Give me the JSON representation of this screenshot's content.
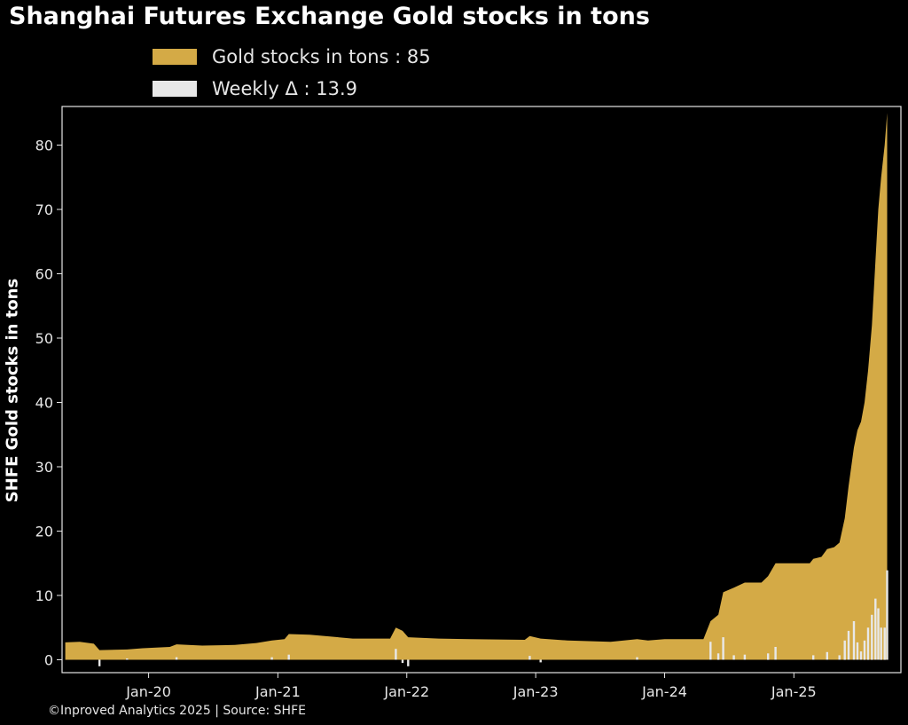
{
  "chart_data": {
    "type": "area",
    "title": "Shanghai Futures Exchange Gold stocks in tons",
    "ylabel": "SHFE Gold stocks in tons",
    "xlabel": "",
    "ylim": [
      -2,
      86
    ],
    "xlim": [
      "2019-05-01",
      "2025-10-31"
    ],
    "yticks": [
      "0",
      "10",
      "20",
      "30",
      "40",
      "50",
      "60",
      "70",
      "80"
    ],
    "xticks": [
      {
        "date": "2020-01-01",
        "label": "Jan-20"
      },
      {
        "date": "2021-01-01",
        "label": "Jan-21"
      },
      {
        "date": "2022-01-01",
        "label": "Jan-22"
      },
      {
        "date": "2023-01-01",
        "label": "Jan-23"
      },
      {
        "date": "2024-01-01",
        "label": "Jan-24"
      },
      {
        "date": "2025-01-01",
        "label": "Jan-25"
      }
    ],
    "legend_position": "top-left",
    "series": [
      {
        "name": "Gold stocks in tons",
        "legend_value": "85",
        "color": "#d4aa46",
        "kind": "area",
        "points": [
          [
            "2019-05-10",
            2.7
          ],
          [
            "2019-06-20",
            2.8
          ],
          [
            "2019-07-30",
            2.5
          ],
          [
            "2019-08-15",
            1.5
          ],
          [
            "2019-11-01",
            1.6
          ],
          [
            "2019-12-15",
            1.8
          ],
          [
            "2020-03-01",
            2.0
          ],
          [
            "2020-03-20",
            2.4
          ],
          [
            "2020-06-01",
            2.2
          ],
          [
            "2020-09-01",
            2.3
          ],
          [
            "2020-11-01",
            2.6
          ],
          [
            "2020-12-15",
            3.0
          ],
          [
            "2021-01-20",
            3.2
          ],
          [
            "2021-02-01",
            4.0
          ],
          [
            "2021-04-01",
            3.9
          ],
          [
            "2021-06-01",
            3.6
          ],
          [
            "2021-08-01",
            3.3
          ],
          [
            "2021-11-15",
            3.3
          ],
          [
            "2021-12-01",
            5.0
          ],
          [
            "2021-12-20",
            4.5
          ],
          [
            "2022-01-05",
            3.5
          ],
          [
            "2022-04-01",
            3.3
          ],
          [
            "2022-07-01",
            3.2
          ],
          [
            "2022-12-01",
            3.1
          ],
          [
            "2022-12-15",
            3.7
          ],
          [
            "2023-01-15",
            3.3
          ],
          [
            "2023-04-01",
            3.0
          ],
          [
            "2023-08-01",
            2.8
          ],
          [
            "2023-10-15",
            3.2
          ],
          [
            "2023-11-15",
            3.0
          ],
          [
            "2024-01-01",
            3.2
          ],
          [
            "2024-04-20",
            3.2
          ],
          [
            "2024-05-10",
            6.0
          ],
          [
            "2024-06-01",
            7.0
          ],
          [
            "2024-06-15",
            10.5
          ],
          [
            "2024-07-15",
            11.2
          ],
          [
            "2024-08-15",
            12.0
          ],
          [
            "2024-10-01",
            12.0
          ],
          [
            "2024-10-20",
            13.0
          ],
          [
            "2024-11-10",
            15.0
          ],
          [
            "2025-02-15",
            15.0
          ],
          [
            "2025-02-25",
            15.7
          ],
          [
            "2025-03-20",
            16.0
          ],
          [
            "2025-04-05",
            17.2
          ],
          [
            "2025-04-25",
            17.5
          ],
          [
            "2025-05-10",
            18.2
          ],
          [
            "2025-05-25",
            22.0
          ],
          [
            "2025-06-05",
            27.0
          ],
          [
            "2025-06-20",
            33.0
          ],
          [
            "2025-06-30",
            35.7
          ],
          [
            "2025-07-10",
            37.0
          ],
          [
            "2025-07-20",
            40.0
          ],
          [
            "2025-07-30",
            45.0
          ],
          [
            "2025-08-10",
            52.0
          ],
          [
            "2025-08-20",
            62.0
          ],
          [
            "2025-08-28",
            70.0
          ],
          [
            "2025-09-05",
            75.0
          ],
          [
            "2025-09-15",
            80.0
          ],
          [
            "2025-09-22",
            85.0
          ]
        ]
      },
      {
        "name": "Weekly Δ",
        "legend_value": "13.9",
        "color": "#e8e8e8",
        "kind": "bar",
        "points": [
          [
            "2019-08-15",
            -1.0
          ],
          [
            "2019-11-01",
            0.2
          ],
          [
            "2020-03-20",
            0.4
          ],
          [
            "2020-12-15",
            0.4
          ],
          [
            "2021-02-01",
            0.8
          ],
          [
            "2021-12-01",
            1.7
          ],
          [
            "2021-12-20",
            -0.5
          ],
          [
            "2022-01-05",
            -1.0
          ],
          [
            "2022-12-15",
            0.6
          ],
          [
            "2023-01-15",
            -0.4
          ],
          [
            "2023-10-15",
            0.4
          ],
          [
            "2024-05-10",
            2.8
          ],
          [
            "2024-06-01",
            1.0
          ],
          [
            "2024-06-15",
            3.5
          ],
          [
            "2024-07-15",
            0.7
          ],
          [
            "2024-08-15",
            0.8
          ],
          [
            "2024-10-20",
            1.0
          ],
          [
            "2024-11-10",
            2.0
          ],
          [
            "2025-02-25",
            0.7
          ],
          [
            "2025-04-05",
            1.2
          ],
          [
            "2025-05-10",
            0.7
          ],
          [
            "2025-05-25",
            3.0
          ],
          [
            "2025-06-05",
            4.5
          ],
          [
            "2025-06-20",
            6.0
          ],
          [
            "2025-06-30",
            2.7
          ],
          [
            "2025-07-10",
            1.3
          ],
          [
            "2025-07-20",
            3.0
          ],
          [
            "2025-07-30",
            5.0
          ],
          [
            "2025-08-10",
            7.0
          ],
          [
            "2025-08-20",
            9.5
          ],
          [
            "2025-08-28",
            8.0
          ],
          [
            "2025-09-05",
            5.0
          ],
          [
            "2025-09-15",
            5.0
          ],
          [
            "2025-09-22",
            13.9
          ]
        ]
      }
    ]
  },
  "footer": "©Inproved Analytics 2025 | Source: SHFE"
}
